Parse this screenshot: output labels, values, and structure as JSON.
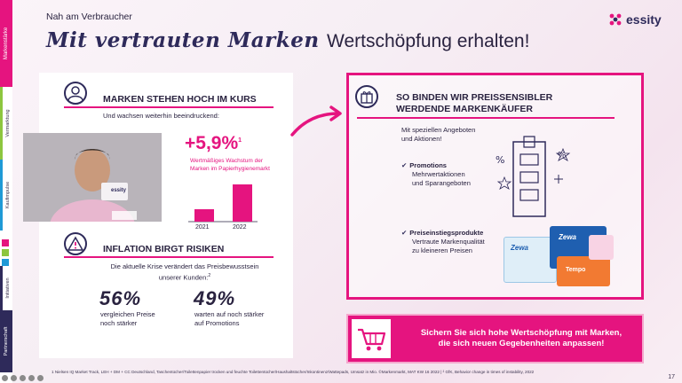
{
  "nav": {
    "items": [
      {
        "label": "Markenstärke",
        "color": "#e5147f"
      },
      {
        "label": "Vermarktung",
        "color": "#8dc63f"
      },
      {
        "label": "Kaufimpulse",
        "color": "#1f9ad6"
      },
      {
        "label": "Initiativen",
        "color": "#2e2a5a"
      },
      {
        "label": "Partnerschaft",
        "color": "#2e2a5a"
      }
    ],
    "marks": [
      "#e5147f",
      "#8dc63f",
      "#1f9ad6"
    ]
  },
  "header": {
    "topic": "Nah am Verbraucher",
    "title_script": "Mit vertrauten Marken",
    "title_plain": "Wertschöpfung erhalten!",
    "logo": "essity"
  },
  "left": {
    "sec1": {
      "heading": "MARKEN STEHEN HOCH IM KURS",
      "subtitle": "Und wachsen weiterhin beeindruckend:",
      "photo_caption": "essity",
      "growth": "+5,9%",
      "growth_sup": "1",
      "growth_note_1": "Wertmäßiges Wachstum der",
      "growth_note_2": "Marken im Papierhygienemarkt",
      "years": [
        "2021",
        "2022"
      ],
      "bars": [
        0.33,
        1.0
      ]
    },
    "sec2": {
      "heading": "INFLATION BIRGT RISIKEN",
      "subtitle_1": "Die aktuelle Krise verändert das Preisbewusstsein",
      "subtitle_2": "unserer Kunden:",
      "subtitle_sup": "2",
      "stat1": "56%",
      "stat1_desc_1": "vergleichen Preise",
      "stat1_desc_2": "noch stärker",
      "stat2": "49%",
      "stat2_desc_1": "warten auf noch stärker",
      "stat2_desc_2": "auf Promotions"
    }
  },
  "right": {
    "heading_1": "SO BINDEN WIR PREISSENSIBLER",
    "heading_2": "WERDENDE MARKENKÄUFER",
    "intro_1": "Mit speziellen Angeboten",
    "intro_2": "und Aktionen!",
    "check1_title": "Promotions",
    "check1_1": "Mehrwertaktionen",
    "check1_2": "und Sparangeboten",
    "check2_title": "Preiseinstiegsprodukte",
    "check2_1": "Vertraute  Markenqualität",
    "check2_2": "zu kleineren Preisen",
    "check_mark": "✔",
    "brands": [
      "Zewa",
      "Zewa",
      "Tempo"
    ]
  },
  "banner": {
    "line1": "Sichern Sie sich hohe Wertschöpfung mit Marken,",
    "line2": "die sich neuen Gegebenheiten anpassen!"
  },
  "footnote": "1 Nielsen IQ Market Track, LEH + DM + CC Deutschland, Taschentücher/Toilettenpapier trocken und feuchte Toilettentücher/Haushaltstücher/Inkontinenz/Wattepads, Umsatz in Mio. ©Markenmarkt, MAT KW 16 2022 | ² GfK, Behavior change in times of instability, 2022",
  "page_number": "17"
}
